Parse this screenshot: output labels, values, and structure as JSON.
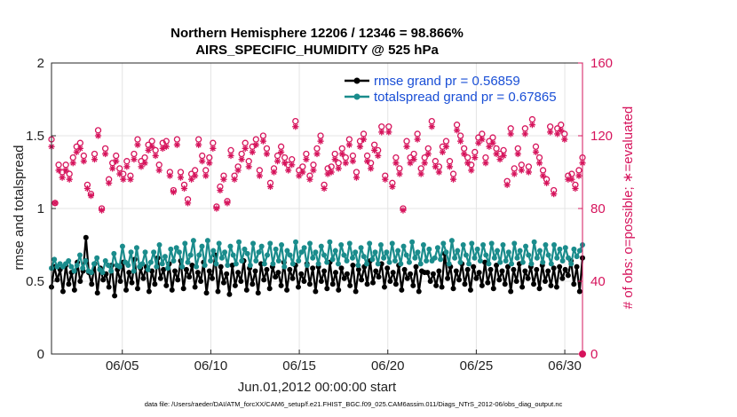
{
  "chart_data": {
    "type": "line",
    "title": "Northern Hemisphere 12206 / 12346 = 98.866%",
    "subtitle": "AIRS_SPECIFIC_HUMIDITY @ 525 hPa",
    "xlabel": "Jun.01,2012 00:00:00 start",
    "ylabel": "rmse and totalspread",
    "ylabel_right": "# of obs: o=possible; ∗=evaluated",
    "xlim": [
      1,
      31
    ],
    "ylim": [
      0,
      2
    ],
    "ylim_right": [
      0,
      160
    ],
    "x_ticks": [
      5,
      10,
      15,
      20,
      25,
      30
    ],
    "x_tick_labels": [
      "06/05",
      "06/10",
      "06/15",
      "06/20",
      "06/25",
      "06/30"
    ],
    "y_ticks": [
      0,
      0.5,
      1,
      1.5,
      2
    ],
    "y_tick_labels": [
      "0",
      "0.5",
      "1",
      "1.5",
      "2"
    ],
    "y_ticks_right": [
      0,
      40,
      80,
      120,
      160
    ],
    "y_tick_labels_right": [
      "0",
      "40",
      "80",
      "120",
      "160"
    ],
    "grid": true,
    "series": [
      {
        "name": "rmse grand pr = 0.56859",
        "color": "#000000",
        "axis": "left",
        "marker": "dot",
        "values": [
          0.46,
          0.6,
          0.51,
          0.58,
          0.43,
          0.61,
          0.48,
          0.56,
          0.44,
          0.63,
          0.5,
          0.57,
          0.8,
          0.56,
          0.48,
          0.62,
          0.42,
          0.59,
          0.51,
          0.55,
          0.46,
          0.61,
          0.4,
          0.58,
          0.5,
          0.63,
          0.44,
          0.56,
          0.49,
          0.65,
          0.45,
          0.59,
          0.52,
          0.6,
          0.43,
          0.57,
          0.48,
          0.66,
          0.52,
          0.58,
          0.47,
          0.62,
          0.44,
          0.57,
          0.51,
          0.64,
          0.45,
          0.58,
          0.53,
          0.61,
          0.46,
          0.56,
          0.5,
          0.63,
          0.42,
          0.57,
          0.52,
          0.68,
          0.43,
          0.6,
          0.49,
          0.55,
          0.41,
          0.61,
          0.47,
          0.56,
          0.5,
          0.64,
          0.44,
          0.59,
          0.48,
          0.57,
          0.42,
          0.62,
          0.51,
          0.58,
          0.45,
          0.6,
          0.53,
          0.56,
          0.47,
          0.63,
          0.44,
          0.58,
          0.52,
          0.61,
          0.46,
          0.55,
          0.5,
          0.62,
          0.48,
          0.59,
          0.43,
          0.6,
          0.5,
          0.57,
          0.45,
          0.63,
          0.48,
          0.56,
          0.44,
          0.59,
          0.52,
          0.55,
          0.47,
          0.61,
          0.43,
          0.58,
          0.51,
          0.6,
          0.48,
          0.64,
          0.49,
          0.57,
          0.53,
          0.62,
          0.46,
          0.59,
          0.5,
          0.56,
          0.48,
          0.61,
          0.44,
          0.58,
          0.52,
          0.55,
          0.47,
          0.6,
          0.43,
          0.57,
          0.56,
          0.56,
          0.5,
          0.55,
          0.47,
          0.57,
          0.46,
          0.69,
          0.52,
          0.6,
          0.45,
          0.57,
          0.51,
          0.62,
          0.48,
          0.58,
          0.44,
          0.6,
          0.52,
          0.56,
          0.47,
          0.63,
          0.49,
          0.58,
          0.45,
          0.61,
          0.51,
          0.57,
          0.48,
          0.6,
          0.43,
          0.58,
          0.5,
          0.62,
          0.46,
          0.57,
          0.52,
          0.6,
          0.48,
          0.58,
          0.45,
          0.61,
          0.5,
          0.57,
          0.47,
          0.59,
          0.46,
          0.6,
          0.52,
          0.58,
          0.54,
          0.64,
          0.48,
          0.6,
          0.43,
          0.66
        ]
      },
      {
        "name": "totalspread grand pr = 0.67865",
        "color": "#1a8c8c",
        "axis": "left",
        "marker": "dot",
        "values": [
          0.59,
          0.65,
          0.6,
          0.62,
          0.6,
          0.62,
          0.64,
          0.6,
          0.57,
          0.61,
          0.68,
          0.59,
          0.64,
          0.57,
          0.56,
          0.62,
          0.66,
          0.58,
          0.56,
          0.64,
          0.61,
          0.57,
          0.69,
          0.61,
          0.6,
          0.74,
          0.63,
          0.61,
          0.7,
          0.57,
          0.73,
          0.6,
          0.62,
          0.7,
          0.58,
          0.63,
          0.7,
          0.6,
          0.75,
          0.62,
          0.67,
          0.59,
          0.72,
          0.64,
          0.73,
          0.7,
          0.6,
          0.76,
          0.63,
          0.68,
          0.78,
          0.6,
          0.68,
          0.74,
          0.61,
          0.78,
          0.64,
          0.71,
          0.62,
          0.76,
          0.66,
          0.7,
          0.61,
          0.74,
          0.68,
          0.62,
          0.77,
          0.64,
          0.72,
          0.69,
          0.61,
          0.76,
          0.64,
          0.7,
          0.74,
          0.62,
          0.68,
          0.76,
          0.62,
          0.72,
          0.64,
          0.75,
          0.6,
          0.71,
          0.68,
          0.62,
          0.77,
          0.64,
          0.7,
          0.73,
          0.61,
          0.76,
          0.66,
          0.7,
          0.62,
          0.74,
          0.68,
          0.63,
          0.77,
          0.65,
          0.71,
          0.62,
          0.75,
          0.68,
          0.64,
          0.76,
          0.66,
          0.7,
          0.61,
          0.73,
          0.67,
          0.62,
          0.76,
          0.65,
          0.7,
          0.62,
          0.75,
          0.66,
          0.7,
          0.63,
          0.76,
          0.64,
          0.71,
          0.62,
          0.74,
          0.68,
          0.63,
          0.77,
          0.66,
          0.7,
          0.62,
          0.75,
          0.64,
          0.72,
          0.64,
          0.66,
          0.73,
          0.65,
          0.76,
          0.7,
          0.62,
          0.78,
          0.66,
          0.71,
          0.63,
          0.75,
          0.68,
          0.62,
          0.76,
          0.66,
          0.72,
          0.64,
          0.75,
          0.68,
          0.62,
          0.76,
          0.66,
          0.71,
          0.63,
          0.75,
          0.64,
          0.7,
          0.62,
          0.76,
          0.66,
          0.71,
          0.63,
          0.74,
          0.68,
          0.62,
          0.77,
          0.66,
          0.71,
          0.63,
          0.75,
          0.68,
          0.62,
          0.75,
          0.66,
          0.72,
          0.64,
          0.73,
          0.66,
          0.62,
          0.72,
          0.67,
          0.71,
          0.75
        ]
      },
      {
        "name": "# of obs possible",
        "color": "#d6145c",
        "axis": "right",
        "marker": "o",
        "values": [
          118,
          83,
          104,
          100,
          104,
          99,
          108,
          114,
          116,
          109,
          93,
          88,
          110,
          123,
          80,
          113,
          96,
          105,
          109,
          102,
          99,
          106,
          98,
          110,
          118,
          106,
          108,
          115,
          117,
          112,
          104,
          116,
          117,
          100,
          90,
          118,
          100,
          93,
          85,
          99,
          101,
          118,
          109,
          101,
          108,
          116,
          81,
          92,
          98,
          84,
          112,
          98,
          103,
          110,
          116,
          106,
          114,
          118,
          101,
          120,
          113,
          94,
          102,
          109,
          114,
          108,
          104,
          107,
          128,
          101,
          103,
          110,
          98,
          104,
          113,
          120,
          93,
          102,
          103,
          110,
          105,
          113,
          108,
          118,
          109,
          100,
          117,
          121,
          109,
          105,
          115,
          112,
          125,
          98,
          125,
          94,
          108,
          102,
          80,
          117,
          108,
          110,
          121,
          102,
          108,
          113,
          128,
          106,
          103,
          114,
          117,
          106,
          99,
          126,
          120,
          113,
          108,
          104,
          111,
          119,
          121,
          108,
          117,
          119,
          113,
          110,
          112,
          95,
          124,
          102,
          113,
          104,
          124,
          103,
          129,
          114,
          108,
          101,
          96,
          125,
          90,
          124,
          126,
          121,
          98,
          99,
          93,
          101,
          108
        ]
      },
      {
        "name": "# of obs evaluated",
        "color": "#d6145c",
        "axis": "right",
        "marker": "asterisk",
        "values": [
          114,
          83,
          101,
          97,
          101,
          96,
          105,
          111,
          113,
          106,
          91,
          87,
          107,
          120,
          79,
          110,
          94,
          102,
          106,
          99,
          96,
          103,
          96,
          107,
          115,
          103,
          105,
          112,
          114,
          109,
          101,
          113,
          114,
          98,
          89,
          115,
          97,
          91,
          83,
          96,
          98,
          115,
          106,
          98,
          105,
          113,
          80,
          90,
          96,
          83,
          109,
          96,
          101,
          107,
          113,
          103,
          111,
          115,
          98,
          117,
          110,
          92,
          100,
          106,
          111,
          105,
          101,
          104,
          125,
          98,
          100,
          107,
          96,
          101,
          110,
          117,
          91,
          99,
          100,
          107,
          102,
          110,
          105,
          115,
          106,
          97,
          114,
          118,
          106,
          102,
          112,
          109,
          122,
          96,
          122,
          92,
          105,
          99,
          79,
          114,
          105,
          107,
          118,
          99,
          105,
          110,
          125,
          103,
          100,
          111,
          114,
          103,
          96,
          123,
          117,
          110,
          105,
          101,
          108,
          116,
          118,
          105,
          114,
          116,
          110,
          107,
          109,
          93,
          121,
          99,
          110,
          101,
          121,
          100,
          126,
          111,
          105,
          98,
          94,
          122,
          88,
          121,
          123,
          118,
          96,
          96,
          91,
          98,
          105
        ]
      }
    ],
    "legend": [
      "rmse grand pr = 0.56859",
      "totalspread grand pr = 0.67865"
    ],
    "legend_position": "top-right"
  },
  "footer": "data file: /Users/raeder/DAI/ATM_forcXX/CAM6_setup/f.e21.FHIST_BGC.f09_025.CAM6assim.011/Diags_NTrS_2012-06/obs_diag_output.nc"
}
